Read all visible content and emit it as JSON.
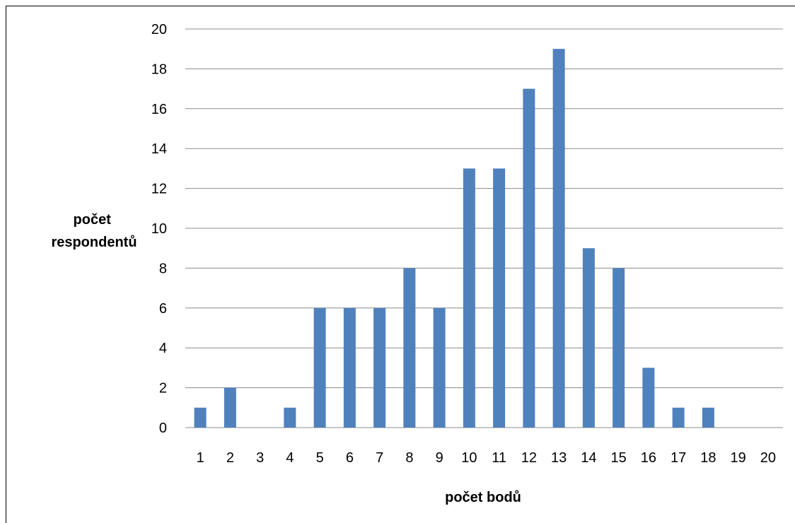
{
  "chart_data": {
    "type": "bar",
    "categories": [
      "1",
      "2",
      "3",
      "4",
      "5",
      "6",
      "7",
      "8",
      "9",
      "10",
      "11",
      "12",
      "13",
      "14",
      "15",
      "16",
      "17",
      "18",
      "19",
      "20"
    ],
    "values": [
      1,
      2,
      0,
      1,
      6,
      6,
      6,
      8,
      6,
      13,
      13,
      17,
      19,
      9,
      8,
      3,
      1,
      1,
      0,
      0
    ],
    "title": "",
    "xlabel": "počet bodů",
    "ylabel": [
      "počet",
      "respondentů"
    ],
    "ylim": [
      0,
      20
    ],
    "yticks": [
      "0",
      "2",
      "4",
      "6",
      "8",
      "10",
      "12",
      "14",
      "16",
      "18",
      "20"
    ],
    "grid": true,
    "legend": "none",
    "bar_color": "#4F81BD",
    "grid_color": "#8C8C8C"
  }
}
